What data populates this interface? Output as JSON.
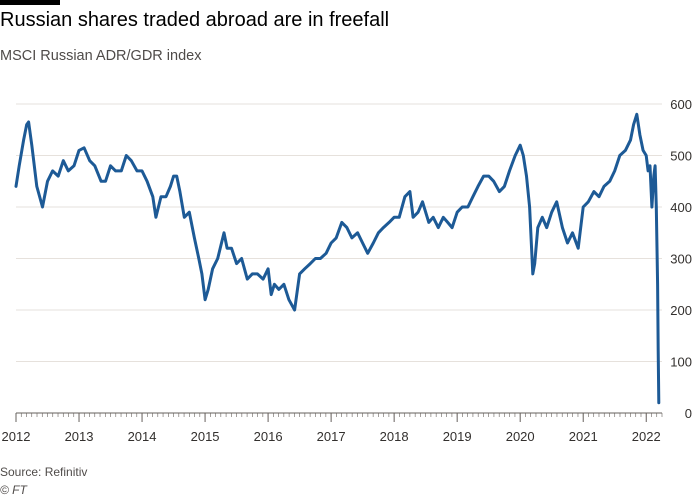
{
  "header": {
    "title": "Russian shares traded abroad are in freefall",
    "subtitle": "MSCI Russian ADR/GDR index"
  },
  "footer": {
    "source": "Source: Refinitiv",
    "copyright": "© FT"
  },
  "colors": {
    "line": "#1d5a96",
    "grid": "#e6e1dc",
    "axis": "#66605c",
    "text": "#33302e"
  },
  "chart_data": {
    "type": "line",
    "title": "Russian shares traded abroad are in freefall",
    "subtitle": "MSCI Russian ADR/GDR index",
    "xlabel": "",
    "ylabel": "",
    "xlim": [
      2012.0,
      2022.25
    ],
    "ylim": [
      0,
      600
    ],
    "y_ticks": [
      0,
      100,
      200,
      300,
      400,
      500,
      600
    ],
    "x_ticks": [
      2012,
      2013,
      2014,
      2015,
      2016,
      2017,
      2018,
      2019,
      2020,
      2021,
      2022
    ],
    "y_axis_side": "right",
    "grid": true,
    "series": [
      {
        "x": [
          2012.0,
          2012.05,
          2012.12,
          2012.17,
          2012.2,
          2012.25,
          2012.33,
          2012.42,
          2012.5,
          2012.58,
          2012.67,
          2012.75,
          2012.83,
          2012.92,
          2013.0,
          2013.08,
          2013.17,
          2013.25,
          2013.35,
          2013.42,
          2013.5,
          2013.58,
          2013.67,
          2013.75,
          2013.83,
          2013.92,
          2014.0,
          2014.08,
          2014.17,
          2014.22,
          2014.3,
          2014.38,
          2014.45,
          2014.5,
          2014.55,
          2014.6,
          2014.67,
          2014.75,
          2014.83,
          2014.9,
          2014.95,
          2015.0,
          2015.05,
          2015.12,
          2015.2,
          2015.3,
          2015.35,
          2015.42,
          2015.5,
          2015.58,
          2015.67,
          2015.75,
          2015.83,
          2015.92,
          2016.0,
          2016.05,
          2016.1,
          2016.17,
          2016.25,
          2016.33,
          2016.42,
          2016.5,
          2016.58,
          2016.67,
          2016.75,
          2016.83,
          2016.92,
          2017.0,
          2017.08,
          2017.17,
          2017.25,
          2017.33,
          2017.42,
          2017.5,
          2017.58,
          2017.67,
          2017.75,
          2017.83,
          2017.92,
          2018.0,
          2018.08,
          2018.17,
          2018.25,
          2018.3,
          2018.38,
          2018.45,
          2018.55,
          2018.62,
          2018.7,
          2018.78,
          2018.85,
          2018.92,
          2019.0,
          2019.08,
          2019.17,
          2019.25,
          2019.33,
          2019.42,
          2019.5,
          2019.58,
          2019.67,
          2019.75,
          2019.83,
          2019.92,
          2020.0,
          2020.05,
          2020.1,
          2020.15,
          2020.2,
          2020.23,
          2020.28,
          2020.35,
          2020.42,
          2020.5,
          2020.58,
          2020.67,
          2020.75,
          2020.83,
          2020.92,
          2021.0,
          2021.08,
          2021.17,
          2021.25,
          2021.33,
          2021.42,
          2021.5,
          2021.58,
          2021.67,
          2021.75,
          2021.8,
          2021.85,
          2021.9,
          2021.95,
          2022.0,
          2022.03,
          2022.06,
          2022.09,
          2022.12,
          2022.14,
          2022.16,
          2022.17,
          2022.18,
          2022.19,
          2022.2
        ],
        "values": [
          440,
          480,
          530,
          560,
          565,
          520,
          440,
          400,
          450,
          470,
          460,
          490,
          470,
          480,
          510,
          515,
          490,
          480,
          450,
          450,
          480,
          470,
          470,
          500,
          490,
          470,
          470,
          450,
          420,
          380,
          420,
          420,
          440,
          460,
          460,
          430,
          380,
          390,
          340,
          300,
          270,
          220,
          240,
          280,
          300,
          350,
          320,
          320,
          290,
          300,
          260,
          270,
          270,
          260,
          280,
          230,
          250,
          240,
          250,
          220,
          200,
          270,
          280,
          290,
          300,
          300,
          310,
          330,
          340,
          370,
          360,
          340,
          350,
          330,
          310,
          330,
          350,
          360,
          370,
          380,
          380,
          420,
          430,
          380,
          390,
          410,
          370,
          380,
          360,
          380,
          370,
          360,
          390,
          400,
          400,
          420,
          440,
          460,
          460,
          450,
          430,
          440,
          470,
          500,
          520,
          500,
          460,
          400,
          270,
          290,
          360,
          380,
          360,
          390,
          410,
          360,
          330,
          350,
          320,
          400,
          410,
          430,
          420,
          440,
          450,
          470,
          500,
          510,
          530,
          560,
          580,
          540,
          510,
          500,
          470,
          480,
          400,
          460,
          480,
          400,
          320,
          250,
          120,
          20
        ]
      }
    ]
  }
}
